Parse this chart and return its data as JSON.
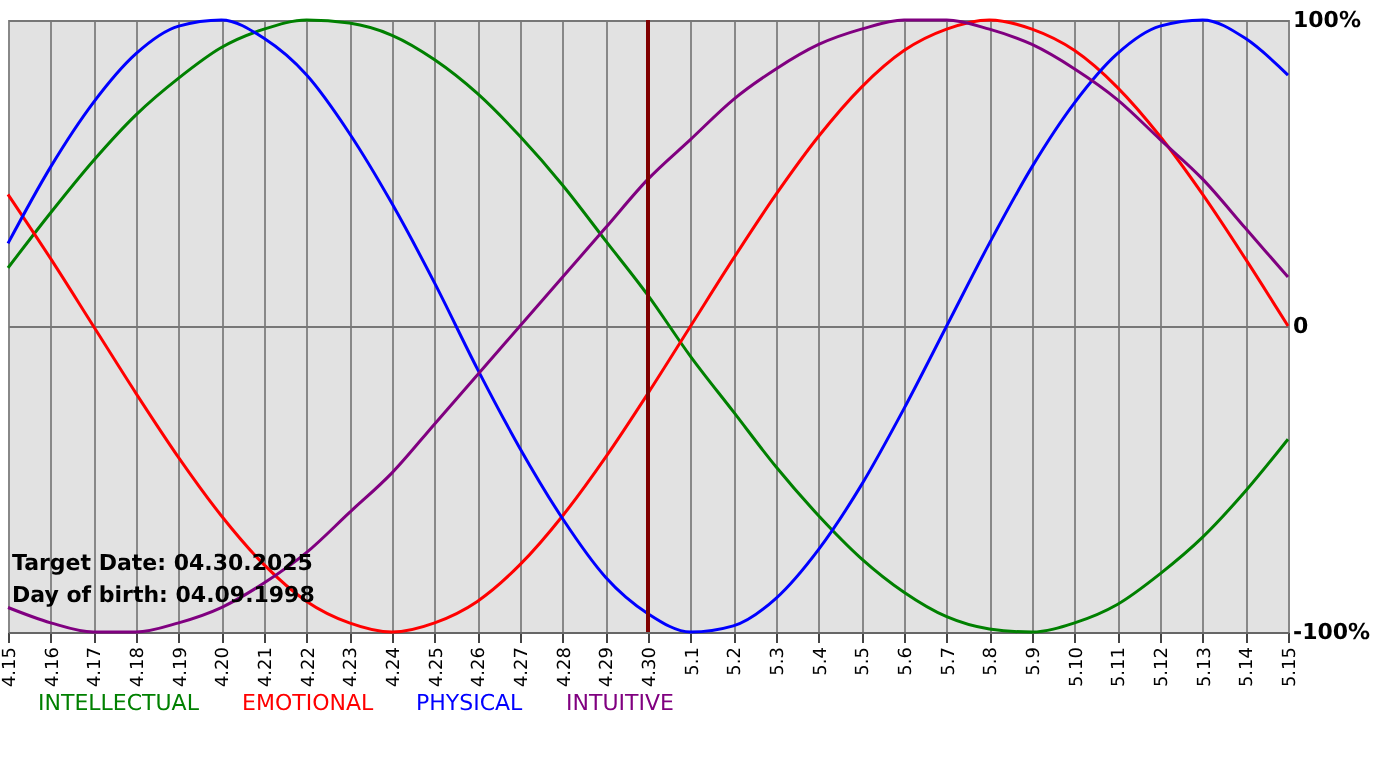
{
  "chart_data": {
    "type": "line",
    "categories": [
      "4.15",
      "4.16",
      "4.17",
      "4.18",
      "4.19",
      "4.20",
      "4.21",
      "4.22",
      "4.23",
      "4.24",
      "4.25",
      "4.26",
      "4.27",
      "4.28",
      "4.29",
      "4.30",
      "5.1",
      "5.2",
      "5.3",
      "5.4",
      "5.5",
      "5.6",
      "5.7",
      "5.8",
      "5.9",
      "5.10",
      "5.11",
      "5.12",
      "5.13",
      "5.14",
      "5.15"
    ],
    "series": [
      {
        "name": "INTELLECTUAL",
        "color": "#008000",
        "values": [
          19,
          37,
          54,
          69,
          81,
          91,
          97,
          100,
          99,
          95,
          87,
          76,
          62,
          46,
          28,
          10,
          -10,
          -28,
          -46,
          -62,
          -76,
          -87,
          -95,
          -99,
          -100,
          -97,
          -91,
          -81,
          -69,
          -54,
          -37
        ]
      },
      {
        "name": "EMOTIONAL",
        "color": "#ff0000",
        "values": [
          43,
          22,
          0,
          -22,
          -43,
          -62,
          -78,
          -90,
          -97,
          -100,
          -97,
          -90,
          -78,
          -62,
          -43,
          -22,
          0,
          22,
          43,
          62,
          78,
          90,
          97,
          100,
          97,
          90,
          78,
          62,
          43,
          22,
          0
        ]
      },
      {
        "name": "PHYSICAL",
        "color": "#0000ff",
        "values": [
          27,
          52,
          73,
          89,
          98,
          100,
          94,
          82,
          63,
          40,
          14,
          -14,
          -40,
          -63,
          -82,
          -94,
          -100,
          -98,
          -89,
          -73,
          -52,
          -27,
          0,
          27,
          52,
          73,
          89,
          98,
          100,
          94,
          82
        ]
      },
      {
        "name": "INTUITIVE",
        "color": "#800080",
        "values": [
          -92,
          -97,
          -100,
          -100,
          -97,
          -92,
          -84,
          -74,
          -61,
          -48,
          -32,
          -16,
          0,
          16,
          32,
          48,
          61,
          74,
          84,
          92,
          97,
          100,
          100,
          97,
          92,
          84,
          74,
          61,
          48,
          32,
          16
        ]
      }
    ],
    "ylim": [
      -100,
      100
    ],
    "yticks": [
      {
        "value": -100,
        "label": "-100%"
      },
      {
        "value": 0,
        "label": "0"
      },
      {
        "value": 100,
        "label": "100%"
      }
    ],
    "ref_lines": [
      {
        "axis": "x",
        "value": "4.30",
        "color": "#800000"
      }
    ],
    "annotations": [
      "Target Date: 04.30.2025",
      "Day of birth: 04.09.1998"
    ],
    "grid": true,
    "legend": "bottom left",
    "line_style": "solid"
  }
}
